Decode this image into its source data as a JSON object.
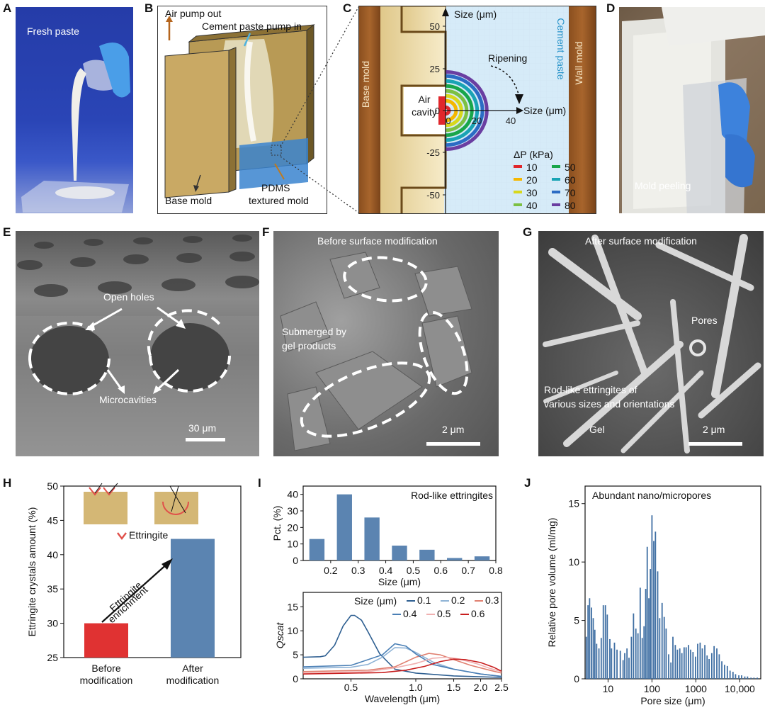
{
  "panels": {
    "A": {
      "label": "A",
      "caption": "Fresh paste"
    },
    "B": {
      "label": "B",
      "air_pump": "Air pump out",
      "cement_in": "Cement paste pump in",
      "base_mold": "Base mold",
      "pdms_1": "PDMS",
      "pdms_2": "textured mold"
    },
    "C": {
      "label": "C",
      "base_mold": "Base mold",
      "wall_mold": "Wall mold",
      "cement_paste": "Cement paste",
      "size_y": "Size (μm)",
      "size_x": "Size (μm)",
      "ripening": "Ripening",
      "air_1": "Air",
      "air_2": "cavity",
      "y_ticks": [
        "50",
        "25",
        "0",
        "-25",
        "-50"
      ],
      "x_ticks": [
        "0",
        "20",
        "40"
      ],
      "legend_title": "ΔP (kPa)",
      "legend": [
        {
          "v": "10",
          "c": "#e0262b"
        },
        {
          "v": "20",
          "c": "#f5b700"
        },
        {
          "v": "30",
          "c": "#d8d81c"
        },
        {
          "v": "40",
          "c": "#7cc043"
        },
        {
          "v": "50",
          "c": "#18a64a"
        },
        {
          "v": "60",
          "c": "#19a3b4"
        },
        {
          "v": "70",
          "c": "#2b6cc4"
        },
        {
          "v": "80",
          "c": "#6a3ea1"
        }
      ]
    },
    "D": {
      "label": "D",
      "caption": "Mold peeling"
    },
    "E": {
      "label": "E",
      "open_holes": "Open holes",
      "microcavities": "Microcavities",
      "scale": "30 μm"
    },
    "F": {
      "label": "F",
      "title": "Before surface modification",
      "submerged_1": "Submerged by",
      "submerged_2": "gel products",
      "scale": "2 μm"
    },
    "G": {
      "label": "G",
      "title": "After surface modification",
      "pores": "Pores",
      "rod_1": "Rod-like ettringites of",
      "rod_2": "various sizes and orientations",
      "gel": "Gel",
      "scale": "2 μm"
    },
    "H": {
      "label": "H",
      "ettringite_legend": "Ettringite",
      "enrich_1": "Ettringite",
      "enrich_2": "enrichment"
    },
    "I": {
      "label": "I",
      "annotation": "Rod-like ettringites",
      "size_legend_title": "Size (μm)"
    },
    "J": {
      "label": "J",
      "annotation": "Abundant nano/micropores"
    }
  },
  "chart_data": [
    {
      "id": "H",
      "type": "bar",
      "categories": [
        "Before modification",
        "After modification"
      ],
      "category_lines": [
        [
          "Before",
          "modification"
        ],
        [
          "After",
          "modification"
        ]
      ],
      "values": [
        30,
        42.3
      ],
      "colors": [
        "#e03232",
        "#5b84b1"
      ],
      "ylabel": "Ettringite crystals amount (%)",
      "ylim": [
        25,
        50
      ],
      "yticks": [
        25,
        30,
        35,
        40,
        45,
        50
      ]
    },
    {
      "id": "I-top",
      "type": "bar",
      "x": [
        0.15,
        0.25,
        0.35,
        0.45,
        0.55,
        0.65,
        0.75
      ],
      "values": [
        13,
        40,
        26,
        9,
        6.5,
        1.5,
        2.5
      ],
      "xlabel": "Size (μm)",
      "ylabel": "Pct. (%)",
      "xlim": [
        0.1,
        0.8
      ],
      "ylim": [
        0,
        45
      ],
      "xticks": [
        0.2,
        0.3,
        0.4,
        0.5,
        0.6,
        0.7,
        0.8
      ],
      "yticks": [
        0,
        10,
        20,
        30,
        40
      ],
      "color": "#5b84b1"
    },
    {
      "id": "I-bottom",
      "type": "line",
      "xlabel": "Wavelength (μm)",
      "ylabel": "Qscat",
      "xlim": [
        0.3,
        2.5
      ],
      "ylim": [
        0,
        18
      ],
      "xticks": [
        0.5,
        1.0,
        1.5,
        2.0,
        2.5
      ],
      "yticks": [
        0,
        5,
        10,
        15
      ],
      "series": [
        {
          "name": "0.1",
          "color": "#2e5f91",
          "x": [
            0.3,
            0.36,
            0.38,
            0.42,
            0.46,
            0.5,
            0.52,
            0.56,
            0.6,
            0.68,
            0.8,
            1.0,
            1.5,
            2.5
          ],
          "y": [
            4.5,
            4.6,
            4.8,
            7,
            11,
            13.2,
            13.2,
            12.2,
            9.8,
            5.2,
            2,
            1.2,
            0.6,
            0.3
          ]
        },
        {
          "name": "0.2",
          "color": "#8fb3d6",
          "x": [
            0.3,
            0.5,
            0.6,
            0.7,
            0.8,
            0.9,
            1.0,
            1.2,
            1.5,
            2.0,
            2.5
          ],
          "y": [
            2.2,
            2.4,
            3,
            4.5,
            6.5,
            6.4,
            5.5,
            3.5,
            2,
            1,
            0.5
          ]
        },
        {
          "name": "0.3",
          "color": "#e08070",
          "x": [
            0.3,
            0.6,
            0.8,
            1.0,
            1.15,
            1.3,
            1.5,
            1.8,
            2.2,
            2.5
          ],
          "y": [
            1.5,
            1.8,
            2.5,
            4.5,
            5.3,
            5,
            4,
            2.8,
            1.8,
            1.2
          ]
        },
        {
          "name": "0.4",
          "color": "#4a7fb5",
          "x": [
            0.3,
            0.5,
            0.7,
            0.8,
            0.9,
            1.0,
            1.2,
            1.5,
            2.0,
            2.5
          ],
          "y": [
            2.5,
            2.8,
            5,
            7.3,
            6.8,
            5.2,
            3,
            2,
            1,
            0.5
          ]
        },
        {
          "name": "0.5",
          "color": "#f0b0b0",
          "x": [
            0.3,
            0.6,
            0.8,
            1.0,
            1.2,
            1.4,
            1.6,
            1.9,
            2.2,
            2.5
          ],
          "y": [
            1.2,
            1.5,
            2.3,
            3.2,
            4.3,
            4.5,
            4.1,
            3.2,
            2.2,
            1.5
          ]
        },
        {
          "name": "0.6",
          "color": "#c81e1e",
          "x": [
            0.3,
            0.7,
            0.9,
            1.1,
            1.3,
            1.5,
            1.7,
            2.0,
            2.3,
            2.5
          ],
          "y": [
            1,
            1.3,
            1.8,
            2.6,
            3.6,
            4.1,
            4,
            3.4,
            2.4,
            1.6
          ]
        }
      ]
    },
    {
      "id": "J",
      "type": "bar",
      "xscale": "log",
      "xlabel": "Pore size (μm)",
      "ylabel": "Relative pore volume (ml/mg)",
      "xlim": [
        3,
        30000
      ],
      "ylim": [
        0,
        16.5
      ],
      "xticks": [
        10,
        100,
        1000,
        10000
      ],
      "xticklabels": [
        "10",
        "100",
        "1000",
        "10,000"
      ],
      "yticks": [
        0,
        5,
        10,
        15
      ],
      "color": "#3f6fa3",
      "x": [
        3.2,
        3.5,
        3.8,
        4.2,
        4.6,
        5.0,
        5.5,
        6.2,
        7.0,
        7.8,
        8.7,
        9.6,
        11,
        12,
        14,
        16,
        19,
        22,
        24,
        27,
        30,
        34,
        38,
        43,
        48,
        54,
        60,
        66,
        72,
        78,
        85,
        92,
        100,
        110,
        120,
        135,
        150,
        170,
        190,
        210,
        240,
        270,
        300,
        340,
        380,
        430,
        480,
        540,
        600,
        680,
        760,
        860,
        980,
        1100,
        1250,
        1400,
        1600,
        1800,
        2000,
        2300,
        2600,
        3000,
        3400,
        3900,
        4500,
        5200,
        6000,
        7000,
        8000,
        9500,
        11000,
        13000,
        15000,
        18000,
        21000,
        25000
      ],
      "y": [
        3.6,
        6.3,
        6.9,
        6.1,
        5.2,
        4.2,
        3,
        2.6,
        3.5,
        6.3,
        6.3,
        5.5,
        3.4,
        2.6,
        3.1,
        2.5,
        2.4,
        1.6,
        2.2,
        2.6,
        1.8,
        3.6,
        5.6,
        4.3,
        3.9,
        7.8,
        3.5,
        4.5,
        7.7,
        11.3,
        6.9,
        9.4,
        14,
        11.8,
        12.6,
        9.2,
        5.2,
        6.5,
        5.3,
        4.3,
        2.1,
        1.4,
        3.6,
        2.9,
        2.5,
        2.6,
        2.2,
        2.7,
        2.7,
        2.9,
        2.5,
        2.3,
        1.9,
        3.0,
        3.1,
        2.6,
        2.9,
        2.0,
        1.7,
        2.2,
        2.8,
        2.6,
        2.1,
        1.5,
        1.2,
        1.1,
        0.7,
        0.6,
        0.4,
        0.3,
        0.3,
        0.2,
        0.2,
        0.1,
        0.1,
        0.1
      ]
    }
  ]
}
